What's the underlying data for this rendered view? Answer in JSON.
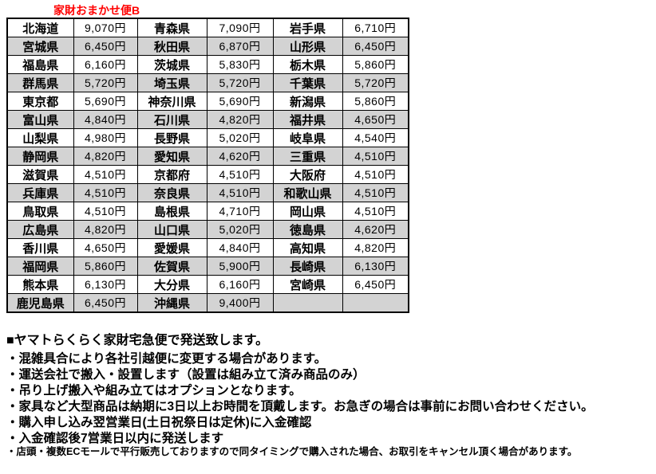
{
  "title": {
    "text": "家財おまかせ便B",
    "color": "#ff0000"
  },
  "shipping_table": {
    "row_alt_color": "#d3d3d3",
    "border_color": "#000000",
    "currency_suffix": "円",
    "rows": [
      [
        {
          "pref": "北海道",
          "price": "9,070円"
        },
        {
          "pref": "青森県",
          "price": "7,090円"
        },
        {
          "pref": "岩手県",
          "price": "6,710円"
        }
      ],
      [
        {
          "pref": "宮城県",
          "price": "6,450円"
        },
        {
          "pref": "秋田県",
          "price": "6,870円"
        },
        {
          "pref": "山形県",
          "price": "6,450円"
        }
      ],
      [
        {
          "pref": "福島県",
          "price": "6,160円"
        },
        {
          "pref": "茨城県",
          "price": "5,830円"
        },
        {
          "pref": "栃木県",
          "price": "5,860円"
        }
      ],
      [
        {
          "pref": "群馬県",
          "price": "5,720円"
        },
        {
          "pref": "埼玉県",
          "price": "5,720円"
        },
        {
          "pref": "千葉県",
          "price": "5,720円"
        }
      ],
      [
        {
          "pref": "東京都",
          "price": "5,690円"
        },
        {
          "pref": "神奈川県",
          "price": "5,690円"
        },
        {
          "pref": "新潟県",
          "price": "5,860円"
        }
      ],
      [
        {
          "pref": "富山県",
          "price": "4,840円"
        },
        {
          "pref": "石川県",
          "price": "4,820円"
        },
        {
          "pref": "福井県",
          "price": "4,650円"
        }
      ],
      [
        {
          "pref": "山梨県",
          "price": "4,980円"
        },
        {
          "pref": "長野県",
          "price": "5,020円"
        },
        {
          "pref": "岐阜県",
          "price": "4,540円"
        }
      ],
      [
        {
          "pref": "静岡県",
          "price": "4,820円"
        },
        {
          "pref": "愛知県",
          "price": "4,620円"
        },
        {
          "pref": "三重県",
          "price": "4,510円"
        }
      ],
      [
        {
          "pref": "滋賀県",
          "price": "4,510円"
        },
        {
          "pref": "京都府",
          "price": "4,510円"
        },
        {
          "pref": "大阪府",
          "price": "4,510円"
        }
      ],
      [
        {
          "pref": "兵庫県",
          "price": "4,510円"
        },
        {
          "pref": "奈良県",
          "price": "4,510円"
        },
        {
          "pref": "和歌山県",
          "price": "4,510円"
        }
      ],
      [
        {
          "pref": "鳥取県",
          "price": "4,510円"
        },
        {
          "pref": "島根県",
          "price": "4,710円"
        },
        {
          "pref": "岡山県",
          "price": "4,510円"
        }
      ],
      [
        {
          "pref": "広島県",
          "price": "4,820円"
        },
        {
          "pref": "山口県",
          "price": "5,020円"
        },
        {
          "pref": "徳島県",
          "price": "4,620円"
        }
      ],
      [
        {
          "pref": "香川県",
          "price": "4,650円"
        },
        {
          "pref": "愛媛県",
          "price": "4,840円"
        },
        {
          "pref": "高知県",
          "price": "4,820円"
        }
      ],
      [
        {
          "pref": "福岡県",
          "price": "5,860円"
        },
        {
          "pref": "佐賀県",
          "price": "5,900円"
        },
        {
          "pref": "長崎県",
          "price": "6,130円"
        }
      ],
      [
        {
          "pref": "熊本県",
          "price": "6,130円"
        },
        {
          "pref": "大分県",
          "price": "6,160円"
        },
        {
          "pref": "宮崎県",
          "price": "6,450円"
        }
      ],
      [
        {
          "pref": "鹿児島県",
          "price": "6,450円"
        },
        {
          "pref": "沖縄県",
          "price": "9,400円"
        },
        {
          "pref": "",
          "price": ""
        }
      ]
    ]
  },
  "notes": {
    "heading": "■ヤマトらくらく家財宅急便で発送致します。",
    "bullets": [
      "・混雑具合により各社引越便に変更する場合があります。",
      "・運送会社で搬入・設置します（設置は組み立て済み商品のみ）",
      "・吊り上げ搬入や組み立てはオプションとなります。",
      "・家具など大型商品は納期に3日以上お時間を頂戴します。お急ぎの場合は事前にお問い合わせください。",
      "・購入申し込み翌営業日(土日祝祭日は定休)に入金確認",
      "・入金確認後7営業日以内に発送します"
    ],
    "footnote": "・店頭・複数ECモールで平行販売しておりますので同タイミングで購入された場合、お取引をキャンセル頂く場合があります。"
  }
}
